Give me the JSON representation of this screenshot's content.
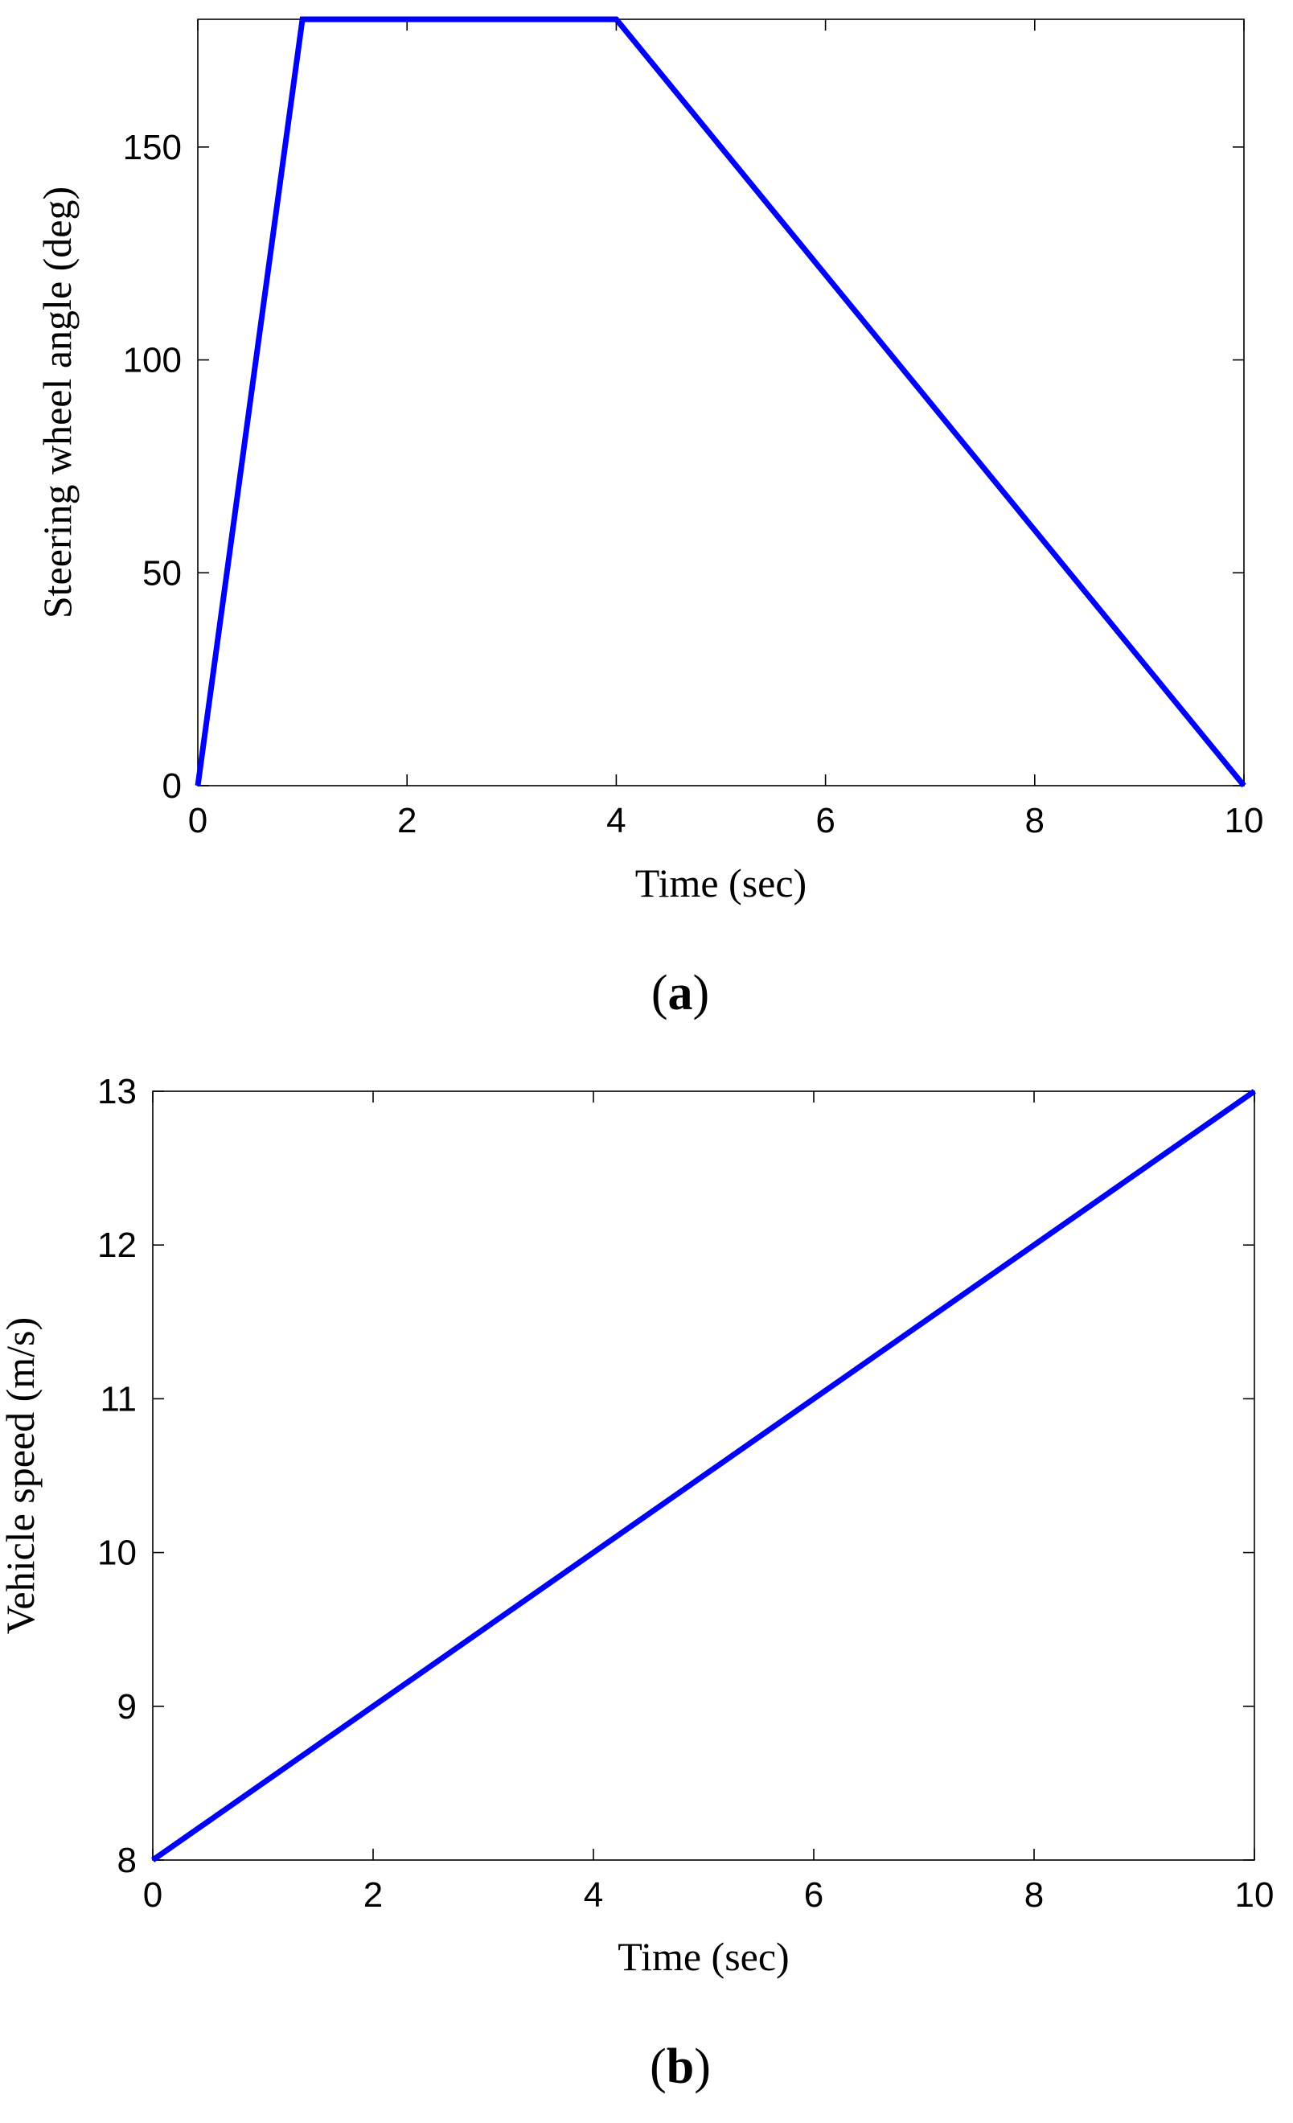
{
  "chart_data": [
    {
      "type": "line",
      "panel_label": "a",
      "xlabel": "Time (sec)",
      "ylabel": "Steering wheel angle (deg)",
      "xlim": [
        0,
        10
      ],
      "ylim": [
        0,
        180
      ],
      "xticks": [
        0,
        2,
        4,
        6,
        8,
        10
      ],
      "yticks": [
        0,
        50,
        100,
        150
      ],
      "grid": false,
      "series": [
        {
          "color": "#0000ff",
          "x": [
            0,
            1,
            4,
            10
          ],
          "y": [
            0,
            180,
            180,
            0
          ]
        }
      ]
    },
    {
      "type": "line",
      "panel_label": "b",
      "xlabel": "Time (sec)",
      "ylabel": "Vehicle speed (m/s)",
      "xlim": [
        0,
        10
      ],
      "ylim": [
        8,
        13
      ],
      "xticks": [
        0,
        2,
        4,
        6,
        8,
        10
      ],
      "yticks": [
        8,
        9,
        10,
        11,
        12,
        13
      ],
      "grid": false,
      "series": [
        {
          "color": "#0000ff",
          "x": [
            0,
            10
          ],
          "y": [
            8,
            13
          ]
        }
      ]
    }
  ]
}
